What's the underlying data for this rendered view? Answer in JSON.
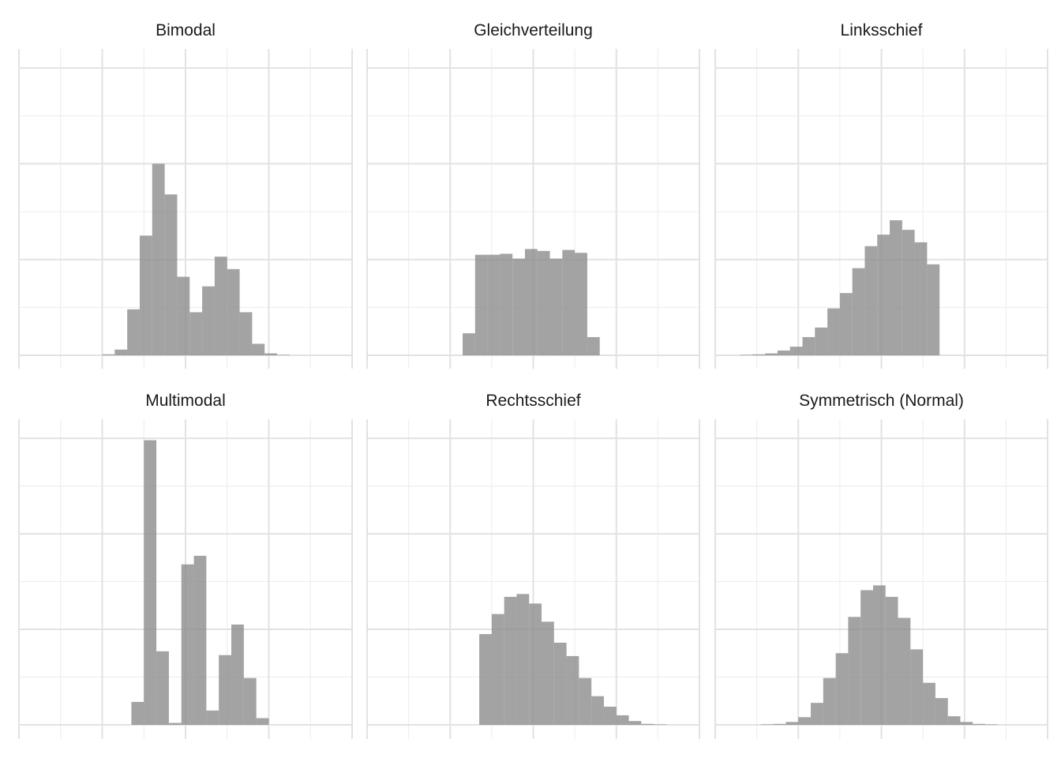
{
  "chart_data": {
    "type": "bar",
    "layout": "facet grid, 2 rows x 3 columns, shared axes, no axis tick labels",
    "grid": true,
    "bar_color": "#8c8c8c",
    "bar_opacity": 0.8,
    "panels": [
      {
        "title": "Bimodal",
        "bins": [
          {
            "x0": 2.0,
            "x1": 2.3,
            "count": 1
          },
          {
            "x0": 2.3,
            "x1": 2.6,
            "count": 6
          },
          {
            "x0": 2.6,
            "x1": 2.9,
            "count": 48
          },
          {
            "x0": 2.9,
            "x1": 3.2,
            "count": 125
          },
          {
            "x0": 3.2,
            "x1": 3.5,
            "count": 200
          },
          {
            "x0": 3.5,
            "x1": 3.8,
            "count": 168
          },
          {
            "x0": 3.8,
            "x1": 4.1,
            "count": 82
          },
          {
            "x0": 4.1,
            "x1": 4.4,
            "count": 45
          },
          {
            "x0": 4.4,
            "x1": 4.7,
            "count": 72
          },
          {
            "x0": 4.7,
            "x1": 5.0,
            "count": 103
          },
          {
            "x0": 5.0,
            "x1": 5.3,
            "count": 90
          },
          {
            "x0": 5.3,
            "x1": 5.6,
            "count": 45
          },
          {
            "x0": 5.6,
            "x1": 5.9,
            "count": 12
          },
          {
            "x0": 5.9,
            "x1": 6.2,
            "count": 2
          },
          {
            "x0": 6.2,
            "x1": 6.5,
            "count": 0.5
          }
        ]
      },
      {
        "title": "Gleichverteilung",
        "bins": [
          {
            "x0": 2.3,
            "x1": 2.6,
            "count": 23
          },
          {
            "x0": 2.6,
            "x1": 2.9,
            "count": 105
          },
          {
            "x0": 2.9,
            "x1": 3.2,
            "count": 105
          },
          {
            "x0": 3.2,
            "x1": 3.5,
            "count": 106
          },
          {
            "x0": 3.5,
            "x1": 3.8,
            "count": 101
          },
          {
            "x0": 3.8,
            "x1": 4.1,
            "count": 111
          },
          {
            "x0": 4.1,
            "x1": 4.4,
            "count": 109
          },
          {
            "x0": 4.4,
            "x1": 4.7,
            "count": 101
          },
          {
            "x0": 4.7,
            "x1": 5.0,
            "count": 110
          },
          {
            "x0": 5.0,
            "x1": 5.3,
            "count": 107
          },
          {
            "x0": 5.3,
            "x1": 5.6,
            "count": 19
          }
        ]
      },
      {
        "title": "Linksschief",
        "bins": [
          {
            "x0": 0.6,
            "x1": 0.9,
            "count": 0.5
          },
          {
            "x0": 0.9,
            "x1": 1.2,
            "count": 1
          },
          {
            "x0": 1.2,
            "x1": 1.5,
            "count": 2
          },
          {
            "x0": 1.5,
            "x1": 1.8,
            "count": 5
          },
          {
            "x0": 1.8,
            "x1": 2.1,
            "count": 9
          },
          {
            "x0": 2.1,
            "x1": 2.4,
            "count": 19
          },
          {
            "x0": 2.4,
            "x1": 2.7,
            "count": 29
          },
          {
            "x0": 2.7,
            "x1": 3.0,
            "count": 49
          },
          {
            "x0": 3.0,
            "x1": 3.3,
            "count": 65
          },
          {
            "x0": 3.3,
            "x1": 3.6,
            "count": 91
          },
          {
            "x0": 3.6,
            "x1": 3.9,
            "count": 114
          },
          {
            "x0": 3.9,
            "x1": 4.2,
            "count": 126
          },
          {
            "x0": 4.2,
            "x1": 4.5,
            "count": 141
          },
          {
            "x0": 4.5,
            "x1": 4.8,
            "count": 131
          },
          {
            "x0": 4.8,
            "x1": 5.1,
            "count": 118
          },
          {
            "x0": 5.1,
            "x1": 5.4,
            "count": 95
          }
        ]
      },
      {
        "title": "Multimodal",
        "bins": [
          {
            "x0": 2.7,
            "x1": 3.0,
            "count": 24
          },
          {
            "x0": 3.0,
            "x1": 3.3,
            "count": 298
          },
          {
            "x0": 3.3,
            "x1": 3.6,
            "count": 77
          },
          {
            "x0": 3.6,
            "x1": 3.9,
            "count": 2
          },
          {
            "x0": 3.9,
            "x1": 4.2,
            "count": 168
          },
          {
            "x0": 4.2,
            "x1": 4.5,
            "count": 177
          },
          {
            "x0": 4.5,
            "x1": 4.8,
            "count": 15
          },
          {
            "x0": 4.8,
            "x1": 5.1,
            "count": 73
          },
          {
            "x0": 5.1,
            "x1": 5.4,
            "count": 105
          },
          {
            "x0": 5.4,
            "x1": 5.7,
            "count": 49
          },
          {
            "x0": 5.7,
            "x1": 6.0,
            "count": 7
          }
        ]
      },
      {
        "title": "Rechtsschief",
        "bins": [
          {
            "x0": 2.7,
            "x1": 3.0,
            "count": 95
          },
          {
            "x0": 3.0,
            "x1": 3.3,
            "count": 116
          },
          {
            "x0": 3.3,
            "x1": 3.6,
            "count": 134
          },
          {
            "x0": 3.6,
            "x1": 3.9,
            "count": 137
          },
          {
            "x0": 3.9,
            "x1": 4.2,
            "count": 127
          },
          {
            "x0": 4.2,
            "x1": 4.5,
            "count": 108
          },
          {
            "x0": 4.5,
            "x1": 4.8,
            "count": 86
          },
          {
            "x0": 4.8,
            "x1": 5.1,
            "count": 72
          },
          {
            "x0": 5.1,
            "x1": 5.4,
            "count": 49
          },
          {
            "x0": 5.4,
            "x1": 5.7,
            "count": 30
          },
          {
            "x0": 5.7,
            "x1": 6.0,
            "count": 19
          },
          {
            "x0": 6.0,
            "x1": 6.3,
            "count": 10
          },
          {
            "x0": 6.3,
            "x1": 6.6,
            "count": 4
          },
          {
            "x0": 6.6,
            "x1": 6.9,
            "count": 1
          },
          {
            "x0": 6.9,
            "x1": 7.2,
            "count": 0.5
          }
        ]
      },
      {
        "title": "Symmetrisch (Normal)",
        "bins": [
          {
            "x0": 1.1,
            "x1": 1.4,
            "count": 0.5
          },
          {
            "x0": 1.4,
            "x1": 1.7,
            "count": 1
          },
          {
            "x0": 1.7,
            "x1": 2.0,
            "count": 3
          },
          {
            "x0": 2.0,
            "x1": 2.3,
            "count": 8
          },
          {
            "x0": 2.3,
            "x1": 2.6,
            "count": 23
          },
          {
            "x0": 2.6,
            "x1": 2.9,
            "count": 49
          },
          {
            "x0": 2.9,
            "x1": 3.2,
            "count": 75
          },
          {
            "x0": 3.2,
            "x1": 3.5,
            "count": 113
          },
          {
            "x0": 3.5,
            "x1": 3.8,
            "count": 141
          },
          {
            "x0": 3.8,
            "x1": 4.1,
            "count": 146
          },
          {
            "x0": 4.1,
            "x1": 4.4,
            "count": 134
          },
          {
            "x0": 4.4,
            "x1": 4.7,
            "count": 112
          },
          {
            "x0": 4.7,
            "x1": 5.0,
            "count": 79
          },
          {
            "x0": 5.0,
            "x1": 5.3,
            "count": 44
          },
          {
            "x0": 5.3,
            "x1": 5.6,
            "count": 28
          },
          {
            "x0": 5.6,
            "x1": 5.9,
            "count": 9
          },
          {
            "x0": 5.9,
            "x1": 6.2,
            "count": 3
          },
          {
            "x0": 6.2,
            "x1": 6.5,
            "count": 1
          },
          {
            "x0": 6.5,
            "x1": 6.8,
            "count": 0.5
          }
        ]
      }
    ],
    "xlim": [
      0,
      8
    ],
    "ylim": [
      0,
      310
    ],
    "x_major_ticks": [
      0,
      2,
      4,
      6,
      8
    ],
    "y_major_ticks": [
      0,
      100,
      200,
      300
    ]
  }
}
